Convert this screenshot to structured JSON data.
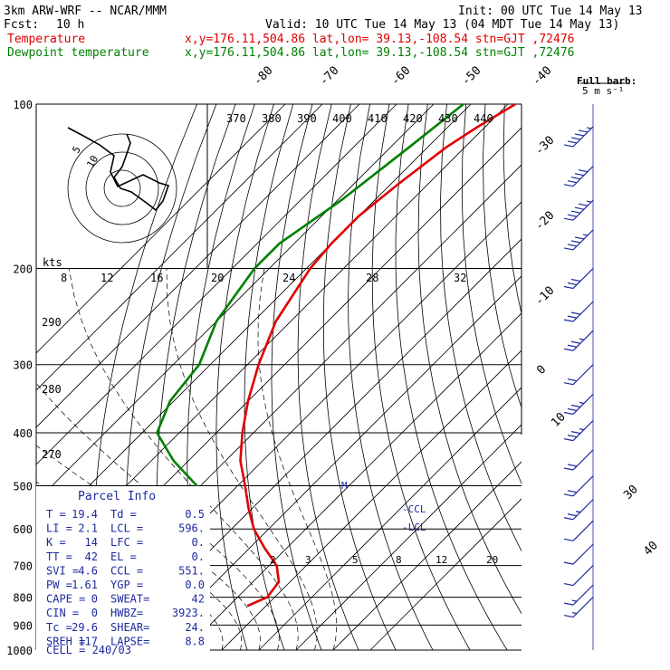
{
  "header": {
    "model": "3km ARW-WRF -- NCAR/MMM",
    "init": "Init: 00 UTC Tue 14 May 13",
    "fcst_label": "Fcst:",
    "fcst_value": "10 h",
    "valid": "Valid: 10 UTC Tue 14 May 13 (04 MDT Tue 14 May 13)",
    "temp_label": "Temperature",
    "temp_info": "x,y=176.11,504.86   lat,lon= 39.13,-108.54  stn=GJT ,72476",
    "dew_label": "Dewpoint temperature",
    "dew_info": "x,y=176.11,504.86   lat,lon= 39.13,-108.54  stn=GJT ,72476",
    "barb_key_title": "Full barb:",
    "barb_key_value": "5 m s⁻¹"
  },
  "colors": {
    "temperature": "#e00000",
    "dewpoint": "#008000",
    "wind": "#1e2aa0",
    "grid": "#000000"
  },
  "chart_data": {
    "type": "line",
    "title": "3km ARW-WRF -- NCAR/MMM",
    "x_scale": "skew-T temperature (C)",
    "y_scale": "log pressure (hPa)",
    "pressure_ticks": [
      "100",
      "200",
      "300",
      "400",
      "500",
      "600",
      "700",
      "800",
      "900",
      "1000"
    ],
    "pressure_levels": [
      100,
      200,
      300,
      400,
      500,
      600,
      700,
      800,
      900,
      1000
    ],
    "isotherm_labels": [
      "-80",
      "-70",
      "-60",
      "-50",
      "-40",
      "-30",
      "-20",
      "-10",
      "0",
      "10",
      "30",
      "40"
    ],
    "theta_labels": [
      "370",
      "380",
      "390",
      "400",
      "410",
      "420",
      "430",
      "440"
    ],
    "theta_labels_left": [
      "290",
      "280",
      "270"
    ],
    "mixing_ratio_labels": [
      "2",
      "3",
      "5",
      "8",
      "12",
      "20"
    ],
    "kts_label": "kts",
    "kts_ticks": [
      "8",
      "12",
      "16",
      "20",
      "24",
      "28",
      "32"
    ],
    "series": [
      {
        "name": "Temperature",
        "pressure": [
          100,
          110,
          120,
          140,
          160,
          180,
          200,
          250,
          300,
          350,
          400,
          450,
          500,
          550,
          600,
          650,
          700,
          750,
          800,
          830
        ],
        "temp": [
          -58,
          -62,
          -65,
          -68,
          -70,
          -70,
          -69,
          -64,
          -57,
          -50,
          -43,
          -36,
          -28,
          -21,
          -14,
          -6,
          2,
          7,
          8,
          5
        ]
      },
      {
        "name": "Dewpoint temperature",
        "pressure": [
          100,
          120,
          150,
          180,
          200,
          250,
          300,
          350,
          400,
          450,
          500,
          550,
          600,
          650,
          700,
          750,
          800,
          830
        ],
        "dewp": [
          -72,
          -75,
          -79,
          -84,
          -84,
          -80,
          -73,
          -71,
          -66,
          -54,
          -41,
          -32,
          -27,
          -32,
          -40,
          -40,
          -37,
          -36
        ]
      }
    ],
    "markers": {
      "ccl": "-CCL",
      "lcl": "-LCL",
      "m": "M"
    },
    "wind_barbs": [
      {
        "p": 110,
        "spd": 45
      },
      {
        "p": 130,
        "spd": 50
      },
      {
        "p": 150,
        "spd": 45
      },
      {
        "p": 170,
        "spd": 35
      },
      {
        "p": 200,
        "spd": 30
      },
      {
        "p": 230,
        "spd": 30
      },
      {
        "p": 260,
        "spd": 25
      },
      {
        "p": 300,
        "spd": 20
      },
      {
        "p": 340,
        "spd": 25
      },
      {
        "p": 380,
        "spd": 25
      },
      {
        "p": 430,
        "spd": 20
      },
      {
        "p": 480,
        "spd": 20
      },
      {
        "p": 530,
        "spd": 15
      },
      {
        "p": 580,
        "spd": 10
      },
      {
        "p": 640,
        "spd": 10
      },
      {
        "p": 700,
        "spd": 10
      },
      {
        "p": 760,
        "spd": 5
      },
      {
        "p": 800,
        "spd": 5
      }
    ]
  },
  "hodograph": {
    "ring_labels": [
      "5",
      "10"
    ]
  },
  "parcel": {
    "title": "Parcel Info",
    "rows": [
      [
        "T  =",
        "19.4",
        "Td =",
        "0.5"
      ],
      [
        "LI =",
        "2.1",
        "LCL =",
        "596."
      ],
      [
        "K  =",
        "14",
        "LFC =",
        "0."
      ],
      [
        "TT =",
        "42",
        "EL  =",
        "0."
      ],
      [
        "SVI =",
        "4.6",
        "CCL =",
        "551."
      ],
      [
        "PW =",
        "1.61",
        "YGP =",
        "0.0"
      ],
      [
        "CAPE =",
        "0",
        "SWEAT=",
        "42"
      ],
      [
        "CIN  =",
        "0",
        "HWBZ=",
        "3923."
      ],
      [
        "Tc  =",
        "29.6",
        "SHEAR=",
        "24."
      ],
      [
        "SREH =",
        "117",
        "LAPSE=",
        "8.8"
      ]
    ],
    "cell": "CELL = 240/03"
  }
}
